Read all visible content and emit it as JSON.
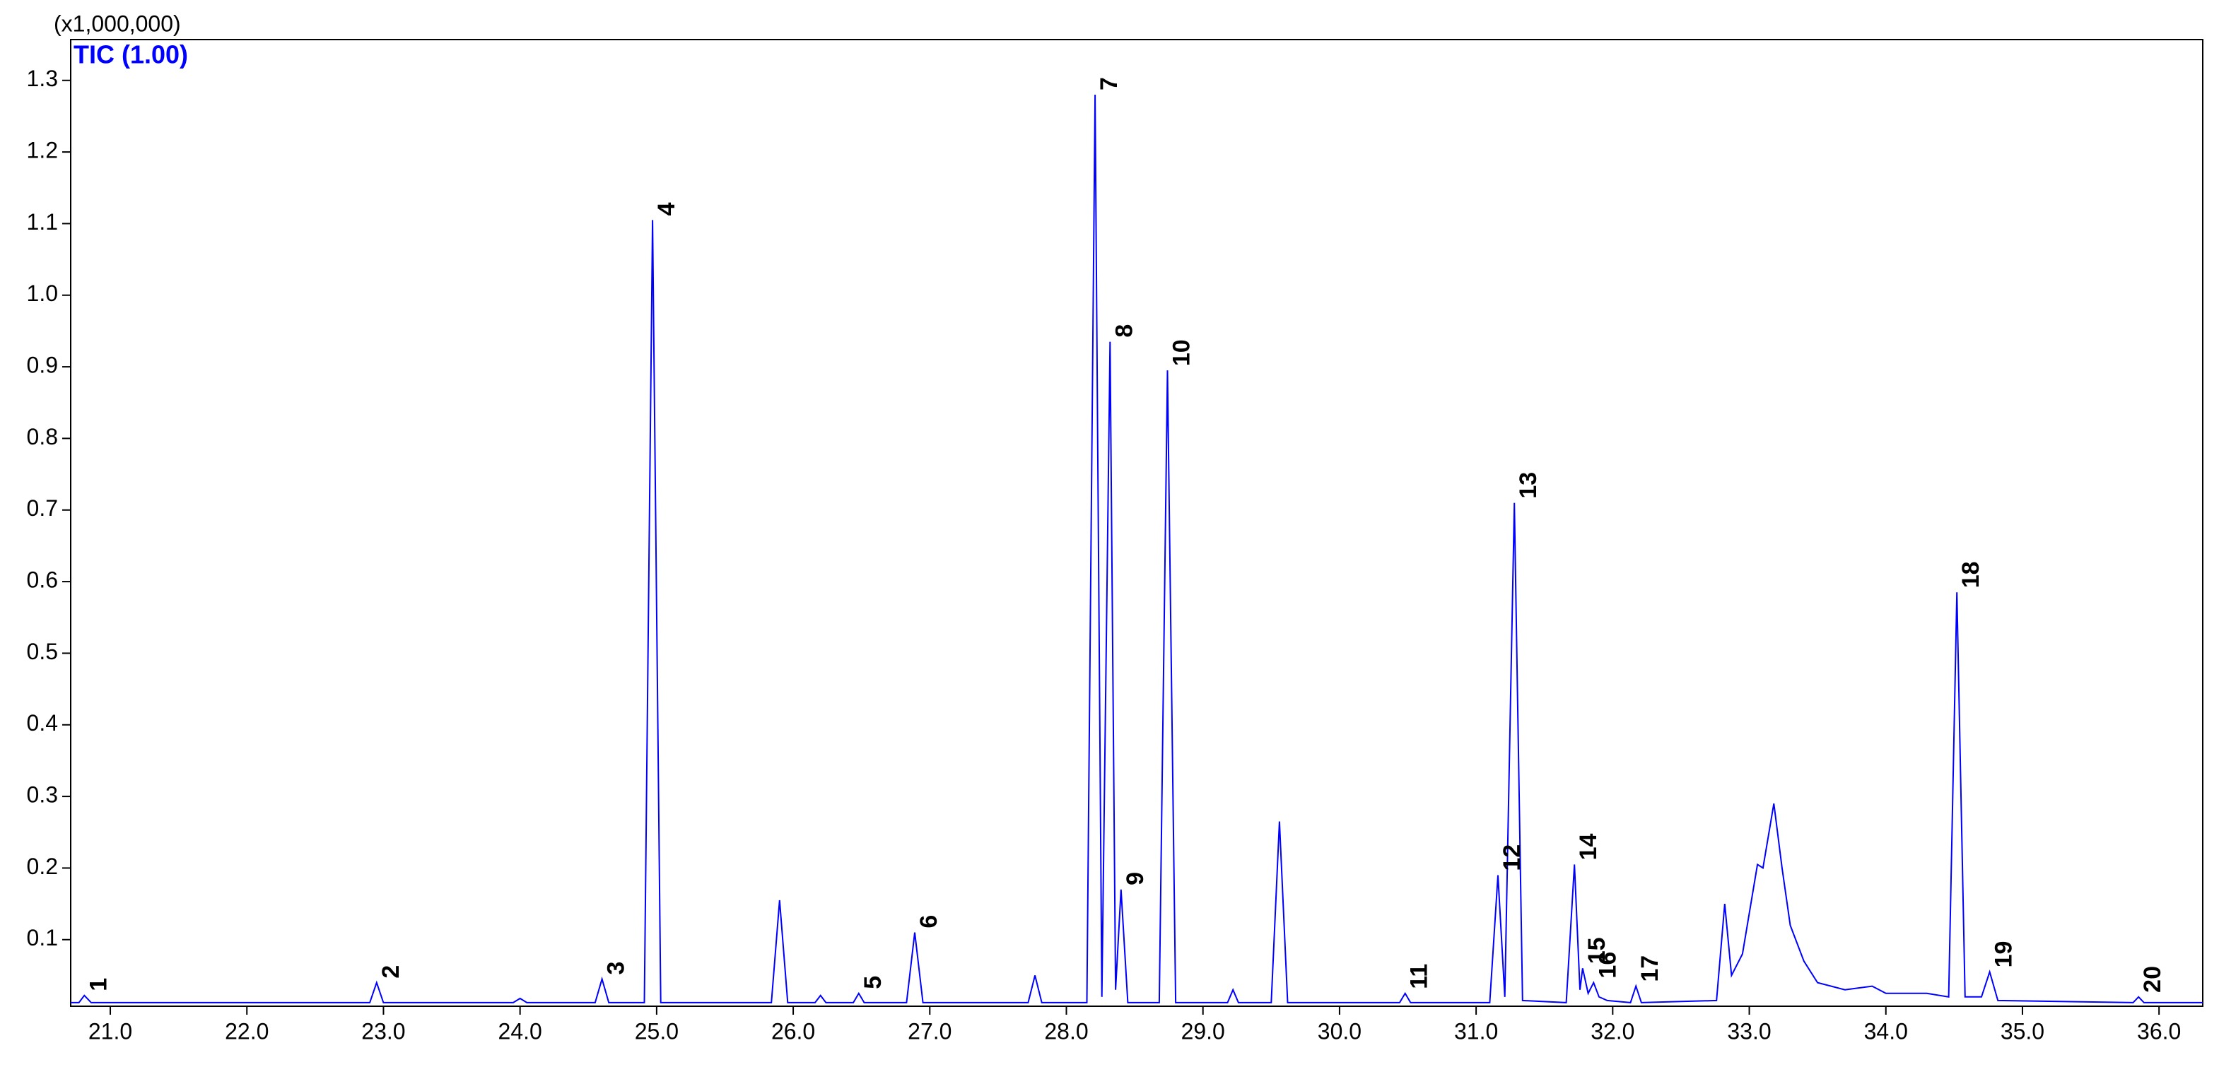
{
  "chart_data": {
    "type": "line",
    "unit_label": "(x1,000,000)",
    "trace_label": "TIC (1.00)",
    "xlim": [
      20.71,
      36.32
    ],
    "ylim": [
      0.007,
      1.357
    ],
    "xticks": [
      {
        "value": 21,
        "label": "21.0"
      },
      {
        "value": 22,
        "label": "22.0"
      },
      {
        "value": 23,
        "label": "23.0"
      },
      {
        "value": 24,
        "label": "24.0"
      },
      {
        "value": 25,
        "label": "25.0"
      },
      {
        "value": 26,
        "label": "26.0"
      },
      {
        "value": 27,
        "label": "27.0"
      },
      {
        "value": 28,
        "label": "28.0"
      },
      {
        "value": 29,
        "label": "29.0"
      },
      {
        "value": 30,
        "label": "30.0"
      },
      {
        "value": 31,
        "label": "31.0"
      },
      {
        "value": 32,
        "label": "32.0"
      },
      {
        "value": 33,
        "label": "33.0"
      },
      {
        "value": 34,
        "label": "34.0"
      },
      {
        "value": 35,
        "label": "35.0"
      },
      {
        "value": 36,
        "label": "36.0"
      }
    ],
    "yticks": [
      0.1,
      0.2,
      0.3,
      0.4,
      0.5,
      0.6,
      0.7,
      0.8,
      0.9,
      {
        "value": 1,
        "label": "1.0"
      },
      1.1,
      1.2,
      1.3
    ],
    "series": [
      {
        "color": "#0000ff",
        "x": [
          20.71,
          20.77,
          20.81,
          20.86,
          22.9,
          22.95,
          23.0,
          23.95,
          24.0,
          24.05,
          24.55,
          24.6,
          24.65,
          24.91,
          24.97,
          25.03,
          25.84,
          25.9,
          25.96,
          26.16,
          26.2,
          26.24,
          26.44,
          26.48,
          26.52,
          26.83,
          26.89,
          26.95,
          27.72,
          27.77,
          27.82,
          28.15,
          28.21,
          28.26,
          28.32,
          28.36,
          28.4,
          28.45,
          28.68,
          28.74,
          28.8,
          29.18,
          29.22,
          29.26,
          29.5,
          29.56,
          29.62,
          30.44,
          30.48,
          30.52,
          31.1,
          31.16,
          31.21,
          31.28,
          31.34,
          31.66,
          31.72,
          31.76,
          31.78,
          31.82,
          31.86,
          31.9,
          31.96,
          32.13,
          32.17,
          32.21,
          32.76,
          32.82,
          32.87,
          32.95,
          33.06,
          33.1,
          33.18,
          33.24,
          33.3,
          33.4,
          33.5,
          33.7,
          33.9,
          34.0,
          34.3,
          34.46,
          34.52,
          34.58,
          34.7,
          34.76,
          34.82,
          35.81,
          35.85,
          35.89,
          36.32
        ],
        "values": [
          0.012,
          0.012,
          0.022,
          0.012,
          0.012,
          0.04,
          0.012,
          0.012,
          0.018,
          0.012,
          0.012,
          0.045,
          0.012,
          0.012,
          1.105,
          0.012,
          0.012,
          0.155,
          0.012,
          0.012,
          0.022,
          0.012,
          0.012,
          0.025,
          0.012,
          0.012,
          0.11,
          0.012,
          0.012,
          0.05,
          0.012,
          0.012,
          1.28,
          0.02,
          0.935,
          0.03,
          0.17,
          0.012,
          0.012,
          0.895,
          0.012,
          0.012,
          0.03,
          0.012,
          0.012,
          0.265,
          0.012,
          0.012,
          0.025,
          0.012,
          0.012,
          0.19,
          0.02,
          0.71,
          0.015,
          0.012,
          0.205,
          0.03,
          0.06,
          0.025,
          0.04,
          0.02,
          0.015,
          0.012,
          0.035,
          0.012,
          0.015,
          0.15,
          0.05,
          0.08,
          0.205,
          0.2,
          0.29,
          0.2,
          0.12,
          0.07,
          0.04,
          0.03,
          0.035,
          0.025,
          0.025,
          0.02,
          0.585,
          0.02,
          0.02,
          0.055,
          0.015,
          0.012,
          0.02,
          0.012,
          0.012
        ]
      }
    ],
    "annotations": [
      {
        "text": "1",
        "x": 20.81,
        "y": 0.022
      },
      {
        "text": "2",
        "x": 22.95,
        "y": 0.04
      },
      {
        "text": "3",
        "x": 24.6,
        "y": 0.045
      },
      {
        "text": "4",
        "x": 24.97,
        "y": 1.105
      },
      {
        "text": "5",
        "x": 26.48,
        "y": 0.025
      },
      {
        "text": "6",
        "x": 26.89,
        "y": 0.11
      },
      {
        "text": "7",
        "x": 28.21,
        "y": 1.28
      },
      {
        "text": "8",
        "x": 28.32,
        "y": 0.935
      },
      {
        "text": "9",
        "x": 28.4,
        "y": 0.17
      },
      {
        "text": "10",
        "x": 28.74,
        "y": 0.895
      },
      {
        "text": "11",
        "x": 30.48,
        "y": 0.025
      },
      {
        "text": "12",
        "x": 31.16,
        "y": 0.19
      },
      {
        "text": "13",
        "x": 31.28,
        "y": 0.71
      },
      {
        "text": "14",
        "x": 31.72,
        "y": 0.205
      },
      {
        "text": "15",
        "x": 31.78,
        "y": 0.06
      },
      {
        "text": "16",
        "x": 31.86,
        "y": 0.04
      },
      {
        "text": "17",
        "x": 32.17,
        "y": 0.035
      },
      {
        "text": "18",
        "x": 34.52,
        "y": 0.585
      },
      {
        "text": "19",
        "x": 34.76,
        "y": 0.055
      },
      {
        "text": "20",
        "x": 35.85,
        "y": 0.02
      }
    ]
  }
}
